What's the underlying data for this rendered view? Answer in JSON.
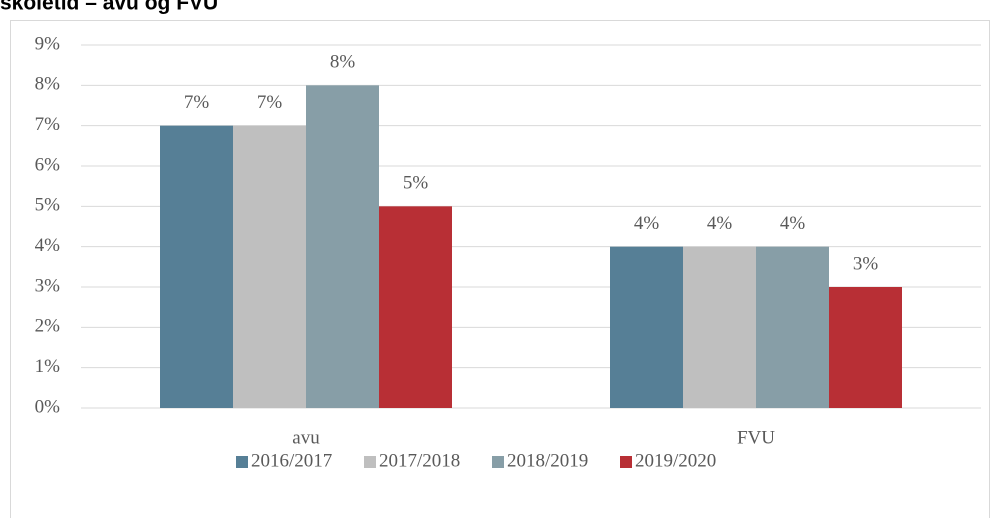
{
  "chart_data": {
    "type": "bar",
    "title": "skoletid – avu og FVU",
    "categories": [
      "avu",
      "FVU"
    ],
    "series": [
      {
        "name": "2016/2017",
        "color": "#567f96",
        "values": [
          7,
          4
        ],
        "value_labels": [
          "7%",
          "4%"
        ]
      },
      {
        "name": "2017/2018",
        "color": "#bfbfbf",
        "values": [
          7,
          4
        ],
        "value_labels": [
          "7%",
          "4%"
        ]
      },
      {
        "name": "2018/2019",
        "color": "#879ea7",
        "values": [
          8,
          4
        ],
        "value_labels": [
          "8%",
          "4%"
        ]
      },
      {
        "name": "2019/2020",
        "color": "#b82f35",
        "values": [
          5,
          3
        ],
        "value_labels": [
          "5%",
          "3%"
        ]
      }
    ],
    "ylim": [
      0,
      9
    ],
    "yticks": [
      {
        "value": 0,
        "label": "0%"
      },
      {
        "value": 1,
        "label": "1%"
      },
      {
        "value": 2,
        "label": "2%"
      },
      {
        "value": 3,
        "label": "3%"
      },
      {
        "value": 4,
        "label": "4%"
      },
      {
        "value": 5,
        "label": "5%"
      },
      {
        "value": 6,
        "label": "6%"
      },
      {
        "value": 7,
        "label": "7%"
      },
      {
        "value": 8,
        "label": "8%"
      },
      {
        "value": 9,
        "label": "9%"
      }
    ],
    "grid": true,
    "legend": "bottom"
  }
}
